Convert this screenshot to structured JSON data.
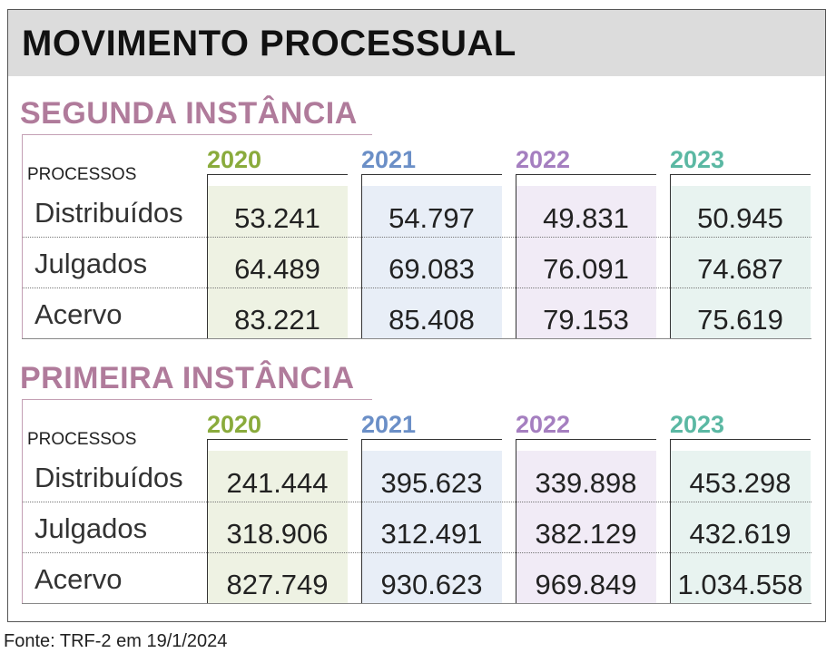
{
  "header": {
    "title": "MOVIMENTO PROCESSUAL"
  },
  "sections": [
    {
      "title": "SEGUNDA INSTÂNCIA",
      "label": "PROCESSOS",
      "years": [
        "2020",
        "2021",
        "2022",
        "2023"
      ],
      "rows": [
        {
          "label": "Distribuídos",
          "values": [
            "53.241",
            "54.797",
            "49.831",
            "50.945"
          ]
        },
        {
          "label": "Julgados",
          "values": [
            "64.489",
            "69.083",
            "76.091",
            "74.687"
          ]
        },
        {
          "label": "Acervo",
          "values": [
            "83.221",
            "85.408",
            "79.153",
            "75.619"
          ]
        }
      ]
    },
    {
      "title": "PRIMEIRA INSTÂNCIA",
      "label": "PROCESSOS",
      "years": [
        "2020",
        "2021",
        "2022",
        "2023"
      ],
      "rows": [
        {
          "label": "Distribuídos",
          "values": [
            "241.444",
            "395.623",
            "339.898",
            "453.298"
          ]
        },
        {
          "label": "Julgados",
          "values": [
            "318.906",
            "312.491",
            "382.129",
            "432.619"
          ]
        },
        {
          "label": "Acervo",
          "values": [
            "827.749",
            "930.623",
            "969.849",
            "1.034.558"
          ]
        }
      ]
    }
  ],
  "footer": "Fonte: TRF-2 em 19/1/2024"
}
